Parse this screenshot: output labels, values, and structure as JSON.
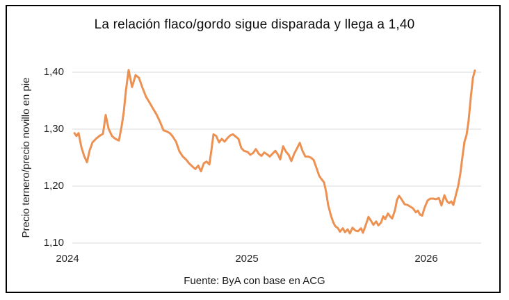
{
  "window": {
    "background": "#ffffff",
    "border_color": "#000000"
  },
  "chart_data": {
    "type": "line",
    "title": "La relación flaco/gordo sigue disparada y llega a 1,40",
    "ylabel": "Precio ternero/precio novillo en pie",
    "xlabel": "",
    "source": "Fuente: ByA con base en ACG",
    "line_color": "#ED9152",
    "gridline_color": "#D9D9D9",
    "text_color": "#262626",
    "grid": true,
    "legend": false,
    "ylim": [
      1.1,
      1.4
    ],
    "xlim": [
      2024.027,
      2026.306
    ],
    "y_ticks": [
      {
        "label": "1,40",
        "value": 1.4
      },
      {
        "label": "1,30",
        "value": 1.3
      },
      {
        "label": "1,20",
        "value": 1.2
      },
      {
        "label": "1,10",
        "value": 1.1
      }
    ],
    "x_ticks": [
      {
        "label": "2024",
        "value": 2024
      },
      {
        "label": "2025",
        "value": 2025
      },
      {
        "label": "2026",
        "value": 2026
      }
    ],
    "series_name": "Precio ternero/precio novillo en pie",
    "points": [
      [
        2024.039,
        1.293
      ],
      [
        2024.05,
        1.288
      ],
      [
        2024.062,
        1.293
      ],
      [
        2024.078,
        1.268
      ],
      [
        2024.093,
        1.253
      ],
      [
        2024.109,
        1.242
      ],
      [
        2024.124,
        1.263
      ],
      [
        2024.14,
        1.277
      ],
      [
        2024.159,
        1.283
      ],
      [
        2024.178,
        1.288
      ],
      [
        2024.198,
        1.292
      ],
      [
        2024.213,
        1.325
      ],
      [
        2024.229,
        1.301
      ],
      [
        2024.248,
        1.288
      ],
      [
        2024.267,
        1.283
      ],
      [
        2024.287,
        1.28
      ],
      [
        2024.302,
        1.305
      ],
      [
        2024.314,
        1.33
      ],
      [
        2024.326,
        1.368
      ],
      [
        2024.341,
        1.404
      ],
      [
        2024.36,
        1.374
      ],
      [
        2024.38,
        1.395
      ],
      [
        2024.399,
        1.39
      ],
      [
        2024.419,
        1.372
      ],
      [
        2024.438,
        1.357
      ],
      [
        2024.457,
        1.347
      ],
      [
        2024.477,
        1.336
      ],
      [
        2024.496,
        1.326
      ],
      [
        2024.516,
        1.313
      ],
      [
        2024.535,
        1.298
      ],
      [
        2024.554,
        1.296
      ],
      [
        2024.57,
        1.293
      ],
      [
        2024.585,
        1.288
      ],
      [
        2024.605,
        1.278
      ],
      [
        2024.624,
        1.261
      ],
      [
        2024.643,
        1.252
      ],
      [
        2024.663,
        1.246
      ],
      [
        2024.678,
        1.24
      ],
      [
        2024.698,
        1.234
      ],
      [
        2024.713,
        1.23
      ],
      [
        2024.729,
        1.236
      ],
      [
        2024.744,
        1.226
      ],
      [
        2024.76,
        1.24
      ],
      [
        2024.775,
        1.243
      ],
      [
        2024.791,
        1.238
      ],
      [
        2024.802,
        1.262
      ],
      [
        2024.814,
        1.291
      ],
      [
        2024.829,
        1.288
      ],
      [
        2024.845,
        1.277
      ],
      [
        2024.86,
        1.283
      ],
      [
        2024.876,
        1.278
      ],
      [
        2024.891,
        1.284
      ],
      [
        2024.907,
        1.289
      ],
      [
        2024.922,
        1.291
      ],
      [
        2024.938,
        1.287
      ],
      [
        2024.953,
        1.283
      ],
      [
        2024.969,
        1.267
      ],
      [
        2024.984,
        1.262
      ],
      [
        2025.004,
        1.26
      ],
      [
        2025.019,
        1.255
      ],
      [
        2025.035,
        1.258
      ],
      [
        2025.05,
        1.265
      ],
      [
        2025.066,
        1.257
      ],
      [
        2025.081,
        1.253
      ],
      [
        2025.097,
        1.259
      ],
      [
        2025.112,
        1.256
      ],
      [
        2025.128,
        1.252
      ],
      [
        2025.143,
        1.257
      ],
      [
        2025.159,
        1.262
      ],
      [
        2025.174,
        1.255
      ],
      [
        2025.186,
        1.247
      ],
      [
        2025.202,
        1.27
      ],
      [
        2025.217,
        1.261
      ],
      [
        2025.233,
        1.255
      ],
      [
        2025.248,
        1.244
      ],
      [
        2025.264,
        1.257
      ],
      [
        2025.279,
        1.266
      ],
      [
        2025.295,
        1.276
      ],
      [
        2025.31,
        1.262
      ],
      [
        2025.326,
        1.252
      ],
      [
        2025.341,
        1.252
      ],
      [
        2025.357,
        1.25
      ],
      [
        2025.372,
        1.246
      ],
      [
        2025.388,
        1.232
      ],
      [
        2025.403,
        1.218
      ],
      [
        2025.419,
        1.211
      ],
      [
        2025.43,
        1.207
      ],
      [
        2025.442,
        1.19
      ],
      [
        2025.453,
        1.167
      ],
      [
        2025.469,
        1.148
      ],
      [
        2025.481,
        1.137
      ],
      [
        2025.492,
        1.13
      ],
      [
        2025.508,
        1.126
      ],
      [
        2025.519,
        1.12
      ],
      [
        2025.535,
        1.126
      ],
      [
        2025.547,
        1.119
      ],
      [
        2025.562,
        1.124
      ],
      [
        2025.574,
        1.117
      ],
      [
        2025.589,
        1.127
      ],
      [
        2025.605,
        1.122
      ],
      [
        2025.62,
        1.121
      ],
      [
        2025.636,
        1.126
      ],
      [
        2025.647,
        1.118
      ],
      [
        2025.663,
        1.132
      ],
      [
        2025.678,
        1.146
      ],
      [
        2025.694,
        1.138
      ],
      [
        2025.705,
        1.132
      ],
      [
        2025.721,
        1.138
      ],
      [
        2025.733,
        1.131
      ],
      [
        2025.748,
        1.136
      ],
      [
        2025.76,
        1.147
      ],
      [
        2025.771,
        1.142
      ],
      [
        2025.787,
        1.152
      ],
      [
        2025.798,
        1.147
      ],
      [
        2025.81,
        1.143
      ],
      [
        2025.826,
        1.158
      ],
      [
        2025.837,
        1.176
      ],
      [
        2025.849,
        1.183
      ],
      [
        2025.864,
        1.176
      ],
      [
        2025.88,
        1.168
      ],
      [
        2025.895,
        1.167
      ],
      [
        2025.911,
        1.164
      ],
      [
        2025.926,
        1.161
      ],
      [
        2025.942,
        1.154
      ],
      [
        2025.953,
        1.157
      ],
      [
        2025.965,
        1.15
      ],
      [
        2025.977,
        1.148
      ],
      [
        2025.992,
        1.163
      ],
      [
        2026.008,
        1.175
      ],
      [
        2026.023,
        1.178
      ],
      [
        2026.039,
        1.178
      ],
      [
        2026.054,
        1.177
      ],
      [
        2026.07,
        1.179
      ],
      [
        2026.085,
        1.166
      ],
      [
        2026.101,
        1.184
      ],
      [
        2026.116,
        1.173
      ],
      [
        2026.128,
        1.17
      ],
      [
        2026.14,
        1.173
      ],
      [
        2026.151,
        1.167
      ],
      [
        2026.167,
        1.187
      ],
      [
        2026.178,
        1.2
      ],
      [
        2026.19,
        1.222
      ],
      [
        2026.202,
        1.252
      ],
      [
        2026.213,
        1.278
      ],
      [
        2026.225,
        1.29
      ],
      [
        2026.236,
        1.315
      ],
      [
        2026.248,
        1.355
      ],
      [
        2026.26,
        1.39
      ],
      [
        2026.271,
        1.403
      ]
    ]
  }
}
